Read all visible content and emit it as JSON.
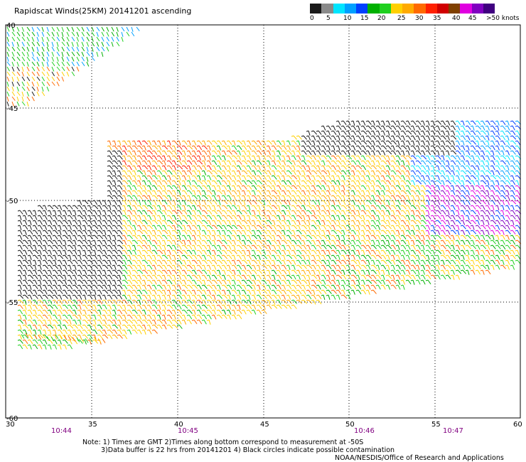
{
  "title": "Rapidscat Winds(25KM) 20141201 ascending",
  "legend": {
    "colors": [
      "#1a1a1a",
      "#8a8a8a",
      "#00e5ff",
      "#00a0ff",
      "#0040ff",
      "#00b000",
      "#20d020",
      "#ffd000",
      "#ffaa00",
      "#ff6a00",
      "#ff2000",
      "#d00000",
      "#804000",
      "#e000e0",
      "#8000c0",
      "#400080"
    ],
    "labels": [
      "0",
      "5",
      "10",
      "15",
      "20",
      "25",
      "30",
      "35",
      "40",
      "45",
      ">50 knots"
    ]
  },
  "axes": {
    "lon_ticks": [
      "30",
      "35",
      "40",
      "45",
      "50",
      "55",
      "60"
    ],
    "lat_ticks": [
      "-45",
      "-50",
      "-55",
      "-60"
    ],
    "lat_top_label": "40",
    "times": [
      "10:44",
      "10:45",
      "10:46",
      "10:47"
    ]
  },
  "notes": {
    "line1": "Note: 1) Times are GMT 2)Times along bottom correspond to measurement at -50S",
    "line2": "3)Data buffer is 22 hrs from 20141201  4) Black circles indicate possible contamination",
    "line3": "NOAA/NESDIS/Office of Research and Applications"
  }
}
